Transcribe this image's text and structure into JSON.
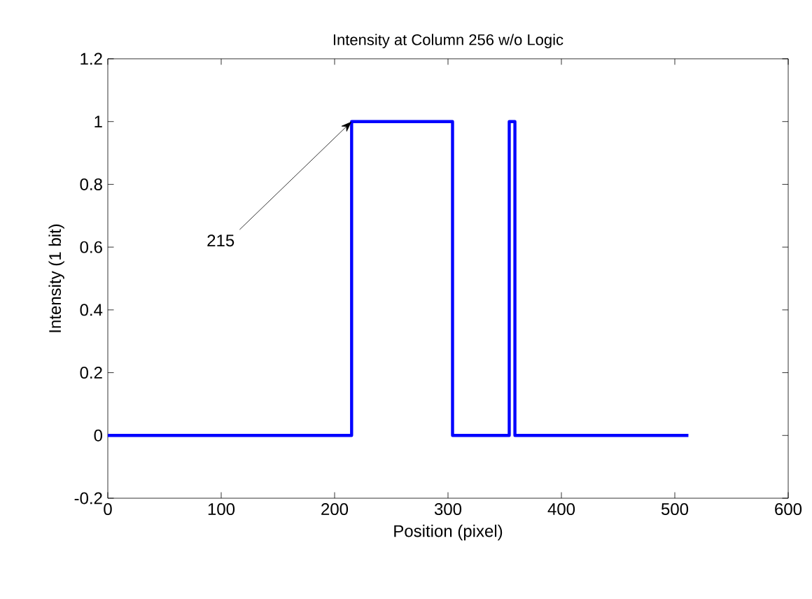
{
  "chart_data": {
    "type": "line",
    "title": "Intensity at Column 256 w/o Logic",
    "xlabel": "Position (pixel)",
    "ylabel": "Intensity (1 bit)",
    "x": [
      0,
      215,
      215,
      304,
      304,
      354,
      354,
      359,
      359,
      512
    ],
    "series": [
      {
        "color": "#0000ff",
        "values": [
          0,
          0,
          1,
          1,
          0,
          0,
          1,
          1,
          0,
          0
        ]
      }
    ],
    "xlim": [
      0,
      600
    ],
    "xticks": [
      0,
      100,
      200,
      300,
      400,
      500,
      600
    ],
    "ylim": [
      -0.2,
      1.2
    ],
    "yticks": [
      -0.2,
      0,
      0.2,
      0.4,
      0.6,
      0.8,
      1,
      1.2
    ],
    "annotations": [
      {
        "text": "215",
        "x": 215,
        "y": 1
      }
    ],
    "marker": "none",
    "line_style": "solid"
  }
}
